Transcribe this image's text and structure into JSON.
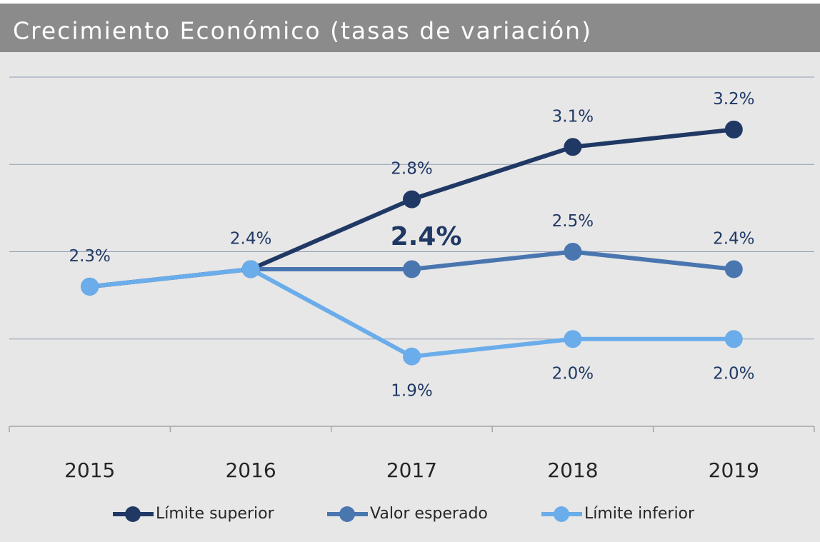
{
  "chart_data": {
    "type": "line",
    "title": "Crecimiento Económico (tasas de variación)",
    "categories": [
      "2015",
      "2016",
      "2017",
      "2018",
      "2019"
    ],
    "series": [
      {
        "name": "Límite superior",
        "color": "#203864",
        "values": [
          2.3,
          2.4,
          2.8,
          3.1,
          3.2
        ],
        "value_labels": [
          null,
          null,
          "2.8%",
          "3.1%",
          "3.2%"
        ],
        "label_position": "above"
      },
      {
        "name": "Valor esperado",
        "color": "#4a76b0",
        "values": [
          2.3,
          2.4,
          2.4,
          2.5,
          2.4
        ],
        "value_labels": [
          "2.3%",
          "2.4%",
          "2.4%",
          "2.5%",
          "2.4%"
        ],
        "label_position": "above",
        "highlight_index": 2
      },
      {
        "name": "Límite inferior",
        "color": "#6badea",
        "values": [
          2.3,
          2.4,
          1.9,
          2.0,
          2.0
        ],
        "value_labels": [
          null,
          null,
          "1.9%",
          "2.0%",
          "2.0%"
        ],
        "label_position": "below"
      }
    ],
    "ylim": [
      1.5,
      3.5
    ],
    "yticks": [
      2,
      2.5,
      3,
      3.5
    ],
    "grid": true,
    "legend": "bottom"
  }
}
